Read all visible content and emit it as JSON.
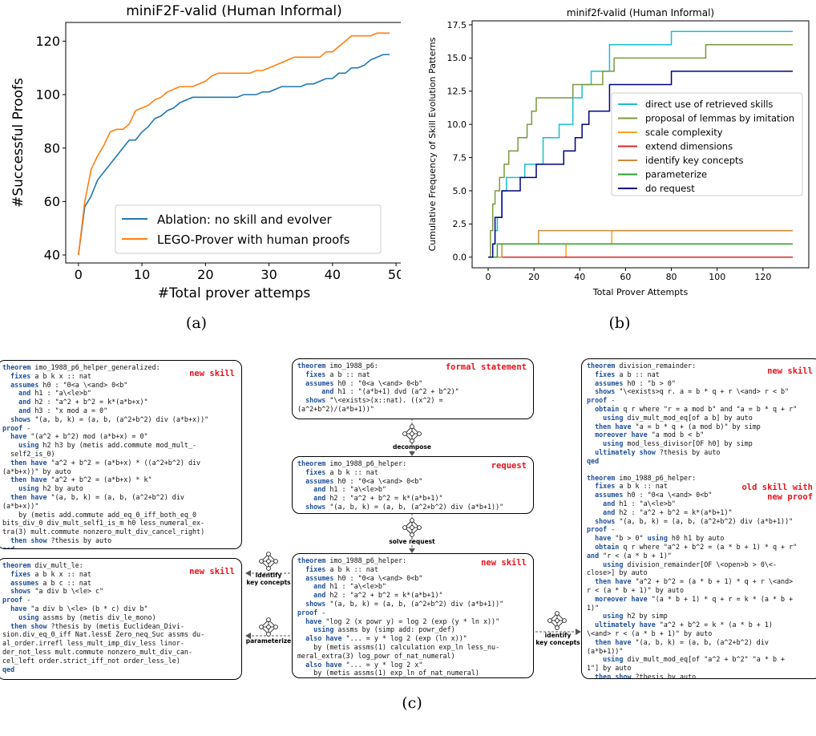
{
  "chart_data": [
    {
      "type": "line",
      "title": "miniF2F-valid (Human Informal)",
      "xlabel": "#Total prover attemps",
      "ylabel": "#Successful Proofs",
      "xlim": [
        -2,
        51
      ],
      "ylim": [
        37,
        127
      ],
      "xticks": [
        0,
        10,
        20,
        30,
        40,
        50
      ],
      "yticks": [
        40,
        60,
        80,
        100,
        120
      ],
      "grid": false,
      "legend_position": "lower-right",
      "series": [
        {
          "name": "Ablation: no skill and evolver",
          "color": "#1f77b4",
          "x": [
            0,
            1,
            2,
            3,
            4,
            5,
            6,
            7,
            8,
            9,
            10,
            11,
            12,
            13,
            14,
            15,
            16,
            17,
            18,
            19,
            20,
            21,
            22,
            23,
            24,
            25,
            26,
            27,
            28,
            29,
            30,
            31,
            32,
            33,
            34,
            35,
            36,
            37,
            38,
            39,
            40,
            41,
            42,
            43,
            44,
            45,
            46,
            47,
            48,
            49
          ],
          "y": [
            40,
            58,
            62,
            68,
            71,
            74,
            77,
            80,
            83,
            83,
            86,
            88,
            91,
            92,
            94,
            95,
            97,
            98,
            99,
            99,
            99,
            99,
            99,
            99,
            99,
            99,
            100,
            100,
            100,
            101,
            101,
            102,
            103,
            103,
            103,
            103,
            104,
            104,
            105,
            106,
            106,
            108,
            108,
            110,
            110,
            111,
            113,
            114,
            115,
            115
          ]
        },
        {
          "name": "LEGO-Prover with human proofs",
          "color": "#ff7f0e",
          "x": [
            0,
            1,
            2,
            3,
            4,
            5,
            6,
            7,
            8,
            9,
            10,
            11,
            12,
            13,
            14,
            15,
            16,
            17,
            18,
            19,
            20,
            21,
            22,
            23,
            24,
            25,
            26,
            27,
            28,
            29,
            30,
            31,
            32,
            33,
            34,
            35,
            36,
            37,
            38,
            39,
            40,
            41,
            42,
            43,
            44,
            45,
            46,
            47,
            48,
            49
          ],
          "y": [
            40,
            60,
            72,
            77,
            81,
            86,
            87,
            87,
            89,
            94,
            95,
            96,
            98,
            99,
            101,
            102,
            103,
            103,
            103,
            104,
            105,
            107,
            108,
            108,
            108,
            108,
            108,
            108,
            109,
            109,
            110,
            111,
            112,
            113,
            114,
            114,
            114,
            114,
            114,
            116,
            116,
            118,
            120,
            122,
            122,
            122,
            122,
            123,
            123,
            123
          ]
        }
      ]
    },
    {
      "type": "line",
      "title": "minif2f-valid (Human Informal)",
      "xlabel": "Total Prover Attempts",
      "ylabel": "Cumulative Frequency of Skill Evolution Patterns",
      "xlim": [
        -7,
        140
      ],
      "ylim": [
        -0.8,
        17.8
      ],
      "xticks": [
        0,
        20,
        40,
        60,
        80,
        100,
        120
      ],
      "yticks": [
        0.0,
        2.5,
        5.0,
        7.5,
        10.0,
        12.5,
        15.0,
        17.5
      ],
      "grid": false,
      "legend_position": "center-right",
      "series": [
        {
          "name": "direct use of retrieved skills",
          "color": "#17becf",
          "x": [
            0,
            2,
            3,
            4,
            6,
            8,
            12,
            16,
            20,
            24,
            28,
            31,
            37,
            41,
            45,
            53,
            63,
            80,
            133
          ],
          "y": [
            0,
            1,
            2,
            3,
            5,
            6,
            6,
            7,
            7,
            9,
            9,
            10,
            12,
            13,
            14,
            16,
            16,
            17,
            17
          ]
        },
        {
          "name": "proposal of lemmas by imitation",
          "color": "#7a9a3c",
          "x": [
            0,
            1,
            2,
            3,
            5,
            7,
            9,
            11,
            13,
            15,
            17,
            19,
            21,
            23,
            25,
            28,
            31,
            34,
            37,
            45,
            50,
            53,
            55,
            58,
            62,
            70,
            80,
            90,
            95,
            133
          ],
          "y": [
            0,
            2,
            4,
            5,
            6,
            7,
            8,
            8,
            9,
            9,
            10,
            11,
            12,
            12,
            12,
            12,
            12,
            12,
            13,
            13,
            14,
            14,
            15,
            15,
            15,
            15,
            15,
            15,
            16,
            16
          ]
        },
        {
          "name": "scale complexity",
          "color": "#ff9e1b",
          "x": [
            0,
            33,
            34,
            52,
            54,
            133
          ],
          "y": [
            0,
            0,
            1,
            1,
            2,
            2
          ]
        },
        {
          "name": "extend dimensions",
          "color": "#d62728",
          "x": [
            0,
            133
          ],
          "y": [
            0,
            0
          ]
        },
        {
          "name": "identify key concepts",
          "color": "#d08b3a",
          "x": [
            0,
            5,
            6,
            21,
            22,
            133
          ],
          "y": [
            0,
            0,
            1,
            1,
            2,
            2
          ]
        },
        {
          "name": "parameterize",
          "color": "#2ca02c",
          "x": [
            0,
            3,
            4,
            133
          ],
          "y": [
            0,
            0,
            1,
            1
          ]
        },
        {
          "name": "do request",
          "color": "#000080",
          "x": [
            0,
            2,
            3,
            5,
            6,
            10,
            14,
            19,
            21,
            22,
            28,
            33,
            38,
            41,
            44,
            48,
            53,
            65,
            80,
            82,
            133
          ],
          "y": [
            0,
            1,
            3,
            3,
            5,
            5,
            6,
            6,
            7,
            7,
            7,
            8,
            9,
            10,
            11,
            11,
            13,
            13,
            14,
            14,
            14
          ]
        }
      ]
    }
  ],
  "labels": {
    "a": "(a)",
    "b": "(b)",
    "c": "(c)"
  },
  "diagram": {
    "boxes": {
      "top_left": {
        "tag": "new skill",
        "code": "theorem imo_1988_p6_helper_generalized:\n  fixes a b k x :: nat\n  assumes h0 : \"0<a \\<and> 0<b\"\n    and h1 : \"a\\<le>b\"\n    and h2 : \"a^2 + b^2 = k*(a*b+x)\"\n    and h3 : \"x mod a = 0\"\n  shows \"(a, b, k) = (a, b, (a^2+b^2) div (a*b+x))\"\nproof -\n  have \"(a^2 + b^2) mod (a*b+x) = 0\"\n    using h2 h3 by (metis add.commute mod_mult_-\n  self2_is_0)\n  then have \"a^2 + b^2 = (a*b+x) * ((a^2+b^2) div\n(a*b+x))\" by auto\n  then have \"a^2 + b^2 = (a*b+x) * k\"\n    using h2 by auto\n  then have \"(a, b, k) = (a, b, (a^2+b^2) div\n(a*b+x))\"\n    by (metis add.commute add_eq_0_iff_both_eq_0\nbits_div_0 div_mult_self1_is_m h0 less_numeral_ex-\ntra(3) mult.commute nonzero_mult_div_cancel_right)\n  then show ?thesis by auto\nqed"
      },
      "bottom_left": {
        "tag": "new skill",
        "code": "theorem div_mult_le:\n  fixes a b k x :: nat\n  assumes a b c :: nat\n  shows \"a div b \\<le> c\"\nproof -\n  have \"a div b \\<le> (b * c) div b\"\n    using assms by (metis div_le_mono)\n  then show ?thesis by (metis Euclidean_Divi-\nsion.div_eq_0_iff Nat.lessE Zero_neq_Suc assms du-\nal_order.irrefl less_mult_imp_div_less linor-\nder_not_less mult.commute nonzero_mult_div_can-\ncel_left order.strict_iff_not order_less_le)\nqed"
      },
      "formal_statement": {
        "tag": "formal statement",
        "code": "theorem imo_1988_p6:\n  fixes a b :: nat\n  assumes h0 : \"0<a \\<and> 0<b\"\n      and h1 : \"(a*b+1) dvd (a^2 + b^2)\"\n  shows \"\\<exists>(x::nat). ((x^2) =\n(a^2+b^2)/(a*b+1))\""
      },
      "request": {
        "tag": "request",
        "code": "theorem imo_1988_p6_helper:\n  fixes a b k :: nat\n  assumes h0 : \"0<a \\<and> 0<b\"\n    and h1 : \"a\\<le>b\"\n    and h2 : \"a^2 + b^2 = k*(a*b+1)\"\n  shows \"(a, b, k) = (a, b, (a^2+b^2) div (a*b+1))\""
      },
      "center_new": {
        "tag": "new skill",
        "code": "theorem imo_1988_p6_helper:\n  fixes a b k :: nat\n  assumes h0 : \"0<a \\<and> 0<b\"\n    and h1 : \"a\\<le>b\"\n    and h2 : \"a^2 + b^2 = k*(a*b+1)\"\n  shows \"(a, b, k) = (a, b, (a^2+b^2) div (a*b+1))\"\nproof -\n  have \"log 2 (x powr y) = log 2 (exp (y * ln x))\"\n    using assms by (simp add: powr_def)\n  also have \"... = y * log 2 (exp (ln x))\"\n    by (metis assms(1) calculation exp_ln less_nu-\nmeral_extra(3) log_powr of_nat_numeral)\n  also have \"... = y * log 2 x\"\n    by (metis assms(1) exp_ln of_nat_numeral)\n  finally show ?thesis by simp\nqed"
      },
      "right_top": {
        "tag": "new skill",
        "code": "theorem division_remainder:\n  fixes a b :: nat\n  assumes h0 : \"b > 0\"\n  shows \"\\<exists>q r. a = b * q + r \\<and> r < b\"\nproof -\n  obtain q r where \"r = a mod b\" and \"a = b * q + r\"\n    using div_mult_mod_eq[of a b] by auto\n  then have \"a = b * q + (a mod b)\" by simp\n  moreover have \"a mod b < b\"\n    using mod_less_divisor[OF h0] by simp\n  ultimately show ?thesis by auto\nqed"
      },
      "right_bottom": {
        "tag": "old skill with\nnew proof",
        "code": "theorem imo_1988_p6_helper:\n  fixes a b k :: nat\n  assumes h0 : \"0<a \\<and> 0<b\"\n    and h1 : \"a\\<le>b\"\n    and h2 : \"a^2 + b^2 = k*(a*b+1)\"\n  shows \"(a, b, k) = (a, b, (a^2+b^2) div (a*b+1))\"\nproof -\n  have \"b > 0\" using h0 h1 by auto\n  obtain q r where \"a^2 + b^2 = (a * b + 1) * q + r\"\nand \"r < (a * b + 1)\"\n    using division_remainder[OF \\<open>b > 0\\<-\nclose>] by auto\n  then have \"a^2 + b^2 = (a * b + 1) * q + r \\<and>\nr < (a * b + 1)\" by auto\n  moreover have \"(a * b + 1) * q + r = k * (a * b +\n1)\"\n    using h2 by simp\n  ultimately have \"a^2 + b^2 = k * (a * b + 1)\n\\<and> r < (a * b + 1)\" by auto\n  then have \"(a, b, k) = (a, b, (a^2+b^2) div\n(a*b+1))\"\n    using div_mult_mod_eq[of \"a^2 + b^2\" \"a * b +\n1\"] by auto\n  then show ?thesis by auto\nqed"
      }
    },
    "flow_labels": {
      "decompose": "decompose",
      "solve_request": "solve request",
      "identify_left": "identify\nkey concepts",
      "parameterize": "parameterize",
      "identify_right": "identify\nkey concepts"
    }
  }
}
